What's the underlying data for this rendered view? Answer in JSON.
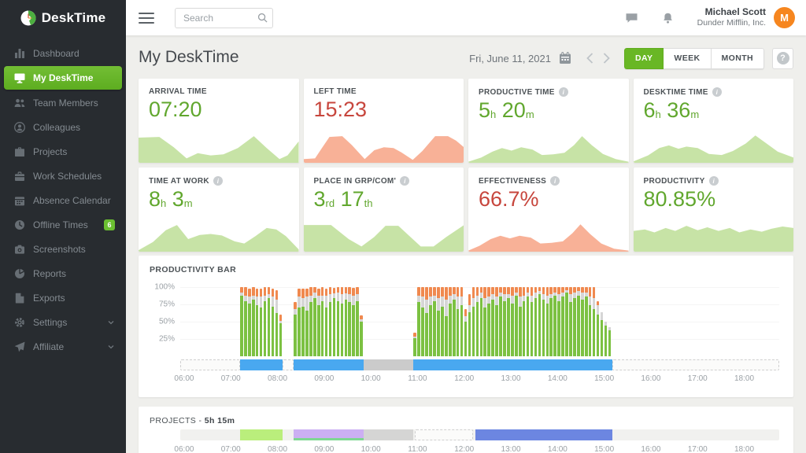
{
  "brand": {
    "name": "DeskTime"
  },
  "sidebar": {
    "items": [
      {
        "label": "Dashboard",
        "icon": "dashboard-icon"
      },
      {
        "label": "My DeskTime",
        "icon": "my-desktime-icon",
        "active": true
      },
      {
        "label": "Team Members",
        "icon": "team-members-icon"
      },
      {
        "label": "Colleagues",
        "icon": "colleague-icon"
      },
      {
        "label": "Projects",
        "icon": "projects-icon"
      },
      {
        "label": "Work Schedules",
        "icon": "work-schedules-icon"
      },
      {
        "label": "Absence Calendar",
        "icon": "absence-calendar-icon"
      },
      {
        "label": "Offline Times",
        "icon": "offline-times-icon",
        "badge": "6"
      },
      {
        "label": "Screenshots",
        "icon": "screenshots-icon"
      },
      {
        "label": "Reports",
        "icon": "reports-icon"
      },
      {
        "label": "Exports",
        "icon": "exports-icon"
      },
      {
        "label": "Settings",
        "icon": "settings-icon",
        "chevron": true
      },
      {
        "label": "Affiliate",
        "icon": "affiliate-icon",
        "chevron": true
      }
    ]
  },
  "topbar": {
    "search_placeholder": "Search",
    "user_name": "Michael Scott",
    "user_company": "Dunder Mifflin, Inc.",
    "avatar_initial": "M"
  },
  "header": {
    "title": "My DeskTime",
    "date": "Fri, June 11, 2021",
    "range_buttons": [
      "DAY",
      "WEEK",
      "MONTH"
    ],
    "active_range": "DAY",
    "help_label": "?"
  },
  "stat_cards": [
    {
      "label": "ARRIVAL TIME",
      "info": false,
      "color": "green",
      "spark": "green",
      "value_parts": [
        {
          "text": "07:20"
        }
      ],
      "points": [
        [
          0,
          32
        ],
        [
          13,
          30
        ],
        [
          22,
          58
        ],
        [
          30,
          88
        ],
        [
          37,
          74
        ],
        [
          45,
          80
        ],
        [
          53,
          77
        ],
        [
          62,
          60
        ],
        [
          72,
          28
        ],
        [
          80,
          60
        ],
        [
          88,
          90
        ],
        [
          93,
          80
        ],
        [
          100,
          42
        ]
      ]
    },
    {
      "label": "LEFT TIME",
      "info": false,
      "color": "red",
      "spark": "red",
      "value_parts": [
        {
          "text": "15:23"
        }
      ],
      "points": [
        [
          0,
          90
        ],
        [
          7,
          88
        ],
        [
          11,
          62
        ],
        [
          16,
          30
        ],
        [
          24,
          28
        ],
        [
          30,
          52
        ],
        [
          38,
          90
        ],
        [
          44,
          66
        ],
        [
          50,
          58
        ],
        [
          56,
          60
        ],
        [
          61,
          72
        ],
        [
          68,
          92
        ],
        [
          74,
          68
        ],
        [
          82,
          28
        ],
        [
          90,
          28
        ],
        [
          95,
          40
        ],
        [
          100,
          58
        ]
      ]
    },
    {
      "label": "PRODUCTIVE TIME",
      "info": true,
      "color": "green",
      "spark": "green",
      "value_parts": [
        {
          "text": "5"
        },
        {
          "text": "h",
          "unit": true
        },
        {
          "text": " 20"
        },
        {
          "text": "m",
          "unit": true
        }
      ],
      "points": [
        [
          0,
          97
        ],
        [
          8,
          86
        ],
        [
          15,
          70
        ],
        [
          21,
          60
        ],
        [
          27,
          67
        ],
        [
          33,
          58
        ],
        [
          40,
          64
        ],
        [
          46,
          79
        ],
        [
          53,
          77
        ],
        [
          60,
          73
        ],
        [
          66,
          52
        ],
        [
          71,
          28
        ],
        [
          77,
          52
        ],
        [
          84,
          76
        ],
        [
          92,
          90
        ],
        [
          100,
          97
        ]
      ]
    },
    {
      "label": "DESKTIME TIME",
      "info": true,
      "color": "green",
      "spark": "green",
      "value_parts": [
        {
          "text": "6"
        },
        {
          "text": "h",
          "unit": true
        },
        {
          "text": " 36"
        },
        {
          "text": "m",
          "unit": true
        }
      ],
      "points": [
        [
          0,
          96
        ],
        [
          9,
          80
        ],
        [
          16,
          60
        ],
        [
          22,
          53
        ],
        [
          28,
          62
        ],
        [
          33,
          56
        ],
        [
          40,
          60
        ],
        [
          47,
          76
        ],
        [
          55,
          79
        ],
        [
          62,
          68
        ],
        [
          70,
          48
        ],
        [
          76,
          26
        ],
        [
          83,
          48
        ],
        [
          90,
          70
        ],
        [
          100,
          86
        ]
      ]
    },
    {
      "label": "TIME AT WORK",
      "info": true,
      "color": "green",
      "spark": "green",
      "value_parts": [
        {
          "text": "8"
        },
        {
          "text": "h",
          "unit": true
        },
        {
          "text": " 3"
        },
        {
          "text": "m",
          "unit": true
        }
      ],
      "points": [
        [
          0,
          96
        ],
        [
          9,
          74
        ],
        [
          17,
          42
        ],
        [
          24,
          28
        ],
        [
          31,
          66
        ],
        [
          38,
          55
        ],
        [
          45,
          52
        ],
        [
          52,
          56
        ],
        [
          60,
          72
        ],
        [
          66,
          78
        ],
        [
          73,
          58
        ],
        [
          80,
          36
        ],
        [
          86,
          40
        ],
        [
          92,
          58
        ],
        [
          100,
          94
        ]
      ]
    },
    {
      "label": "PLACE IN GRP/COM'",
      "info": true,
      "color": "green",
      "spark": "green",
      "value_parts": [
        {
          "text": "3"
        },
        {
          "text": "rd",
          "unit": true
        },
        {
          "text": " 17"
        },
        {
          "text": "th",
          "unit": true
        }
      ],
      "points": [
        [
          0,
          28
        ],
        [
          17,
          28
        ],
        [
          28,
          66
        ],
        [
          36,
          86
        ],
        [
          44,
          60
        ],
        [
          51,
          30
        ],
        [
          59,
          30
        ],
        [
          66,
          58
        ],
        [
          73,
          86
        ],
        [
          81,
          86
        ],
        [
          89,
          60
        ],
        [
          100,
          28
        ]
      ]
    },
    {
      "label": "EFFECTIVENESS",
      "info": true,
      "color": "red",
      "spark": "red",
      "value_parts": [
        {
          "text": "66.7%"
        }
      ],
      "points": [
        [
          0,
          97
        ],
        [
          7,
          84
        ],
        [
          14,
          66
        ],
        [
          20,
          57
        ],
        [
          26,
          64
        ],
        [
          32,
          57
        ],
        [
          39,
          62
        ],
        [
          45,
          78
        ],
        [
          52,
          76
        ],
        [
          59,
          72
        ],
        [
          65,
          50
        ],
        [
          70,
          26
        ],
        [
          76,
          52
        ],
        [
          83,
          78
        ],
        [
          91,
          92
        ],
        [
          100,
          97
        ]
      ]
    },
    {
      "label": "PRODUCTIVITY",
      "info": true,
      "color": "green",
      "spark": "green",
      "value_parts": [
        {
          "text": "80.85%"
        }
      ],
      "points": [
        [
          0,
          44
        ],
        [
          7,
          40
        ],
        [
          13,
          48
        ],
        [
          20,
          36
        ],
        [
          26,
          44
        ],
        [
          33,
          30
        ],
        [
          40,
          42
        ],
        [
          46,
          34
        ],
        [
          53,
          44
        ],
        [
          60,
          36
        ],
        [
          66,
          48
        ],
        [
          73,
          40
        ],
        [
          80,
          46
        ],
        [
          86,
          38
        ],
        [
          93,
          32
        ],
        [
          100,
          36
        ]
      ]
    }
  ],
  "productivity_bar": {
    "title": "PRODUCTIVITY BAR",
    "type": "bar",
    "y_ticks": [
      "100%",
      "75%",
      "50%",
      "25%"
    ],
    "x_ticks": [
      "06:00",
      "07:00",
      "08:00",
      "09:00",
      "10:00",
      "11:00",
      "12:00",
      "13:00",
      "14:00",
      "15:00",
      "16:00",
      "17:00",
      "18:00"
    ],
    "axis_start": "05:55",
    "axis_end": "18:45",
    "bar_interval_min": 5,
    "legend_semantics": {
      "green": "productive",
      "gray": "neutral",
      "orange": "unproductive"
    },
    "sessions": [
      {
        "start": "07:12",
        "bars": [
          [
            88,
            4,
            8
          ],
          [
            80,
            8,
            12
          ],
          [
            76,
            10,
            12
          ],
          [
            82,
            6,
            12
          ],
          [
            74,
            12,
            12
          ],
          [
            70,
            16,
            12
          ],
          [
            80,
            8,
            12
          ],
          [
            84,
            6,
            10
          ],
          [
            72,
            14,
            12
          ],
          [
            62,
            20,
            14
          ],
          [
            48,
            3,
            9
          ]
        ]
      },
      {
        "start": "08:21",
        "bars": [
          [
            60,
            8,
            10
          ],
          [
            70,
            16,
            12
          ],
          [
            72,
            12,
            14
          ],
          [
            66,
            20,
            12
          ],
          [
            78,
            10,
            12
          ],
          [
            84,
            8,
            8
          ],
          [
            74,
            14,
            10
          ],
          [
            80,
            8,
            12
          ],
          [
            70,
            18,
            10
          ],
          [
            78,
            12,
            10
          ],
          [
            84,
            7,
            8
          ],
          [
            80,
            12,
            8
          ],
          [
            76,
            14,
            10
          ],
          [
            82,
            9,
            9
          ],
          [
            78,
            12,
            10
          ],
          [
            74,
            13,
            12
          ],
          [
            80,
            10,
            10
          ],
          [
            50,
            3,
            6
          ]
        ]
      },
      {
        "start": "10:55",
        "bars": [
          [
            26,
            2,
            6
          ],
          [
            78,
            10,
            12
          ],
          [
            70,
            16,
            14
          ],
          [
            62,
            20,
            18
          ],
          [
            74,
            12,
            14
          ],
          [
            80,
            8,
            12
          ],
          [
            66,
            18,
            16
          ],
          [
            72,
            14,
            14
          ],
          [
            58,
            24,
            18
          ],
          [
            76,
            12,
            12
          ],
          [
            82,
            8,
            10
          ],
          [
            68,
            18,
            14
          ],
          [
            74,
            12,
            14
          ],
          [
            50,
            8,
            10
          ],
          [
            64,
            10,
            16
          ],
          [
            72,
            12,
            16
          ],
          [
            78,
            10,
            12
          ],
          [
            84,
            8,
            8
          ],
          [
            70,
            14,
            16
          ],
          [
            76,
            10,
            14
          ],
          [
            82,
            8,
            10
          ],
          [
            74,
            12,
            14
          ],
          [
            86,
            6,
            8
          ],
          [
            80,
            10,
            10
          ],
          [
            84,
            6,
            10
          ],
          [
            76,
            12,
            12
          ],
          [
            88,
            4,
            8
          ],
          [
            72,
            14,
            14
          ],
          [
            80,
            8,
            12
          ],
          [
            86,
            6,
            8
          ],
          [
            78,
            10,
            12
          ],
          [
            84,
            8,
            8
          ],
          [
            90,
            4,
            6
          ],
          [
            82,
            8,
            10
          ],
          [
            76,
            12,
            12
          ],
          [
            84,
            6,
            10
          ],
          [
            88,
            4,
            8
          ],
          [
            80,
            10,
            10
          ],
          [
            86,
            6,
            8
          ],
          [
            92,
            4,
            4
          ],
          [
            78,
            12,
            10
          ],
          [
            84,
            8,
            8
          ],
          [
            88,
            6,
            6
          ],
          [
            82,
            10,
            8
          ],
          [
            86,
            6,
            8
          ],
          [
            74,
            12,
            14
          ],
          [
            68,
            16,
            16
          ],
          [
            60,
            14,
            6
          ],
          [
            52,
            12,
            0
          ],
          [
            44,
            6,
            0
          ],
          [
            38,
            4,
            0
          ]
        ]
      }
    ],
    "timeline": [
      {
        "type": "empty",
        "start": "05:55",
        "end": "07:12"
      },
      {
        "type": "online",
        "start": "07:12",
        "end": "08:07"
      },
      {
        "type": "empty",
        "start": "08:07",
        "end": "08:21"
      },
      {
        "type": "online",
        "start": "08:21",
        "end": "09:51"
      },
      {
        "type": "away",
        "start": "09:51",
        "end": "10:55"
      },
      {
        "type": "online",
        "start": "10:55",
        "end": "15:10"
      },
      {
        "type": "empty",
        "start": "15:10",
        "end": "18:45"
      }
    ]
  },
  "projects": {
    "title": "PROJECTS -",
    "total": "5h 15m",
    "x_ticks": [
      "06:00",
      "07:00",
      "08:00",
      "09:00",
      "10:00",
      "11:00",
      "12:00",
      "13:00",
      "14:00",
      "15:00",
      "16:00",
      "17:00",
      "18:00"
    ],
    "segments": [
      {
        "type": "lime",
        "start": "07:12",
        "end": "08:07"
      },
      {
        "type": "lavender",
        "start": "08:21",
        "end": "09:51"
      },
      {
        "type": "away",
        "start": "09:51",
        "end": "10:55"
      },
      {
        "type": "empty",
        "start": "10:57",
        "end": "12:11"
      },
      {
        "type": "blue",
        "start": "12:14",
        "end": "15:10"
      }
    ]
  },
  "colors": {
    "accent_green": "#69b725",
    "value_green": "#61a72e",
    "value_red": "#c7463d",
    "spark_green_fill": "#c7e3a6",
    "spark_red_fill": "#f8b197",
    "bar_productive": "#7cc142",
    "bar_neutral": "#d6d6d6",
    "bar_unproductive": "#f0894f",
    "timeline_online": "#49a8f0",
    "timeline_away": "#cbcbcb",
    "project_blue": "#6c86e1",
    "project_lime": "#baee7c",
    "project_lavender": "#ccaff3",
    "avatar_orange": "#f6861f"
  }
}
